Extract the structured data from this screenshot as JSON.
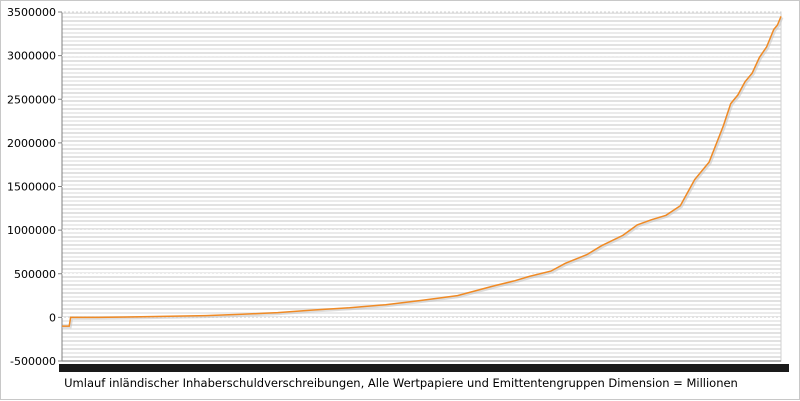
{
  "chart_data": {
    "type": "line",
    "xlabel": "Umlauf inländischer Inhaberschuldverschreibungen, Alle Wertpapiere und Emittentengruppen Dimension = Millionen",
    "ylim": [
      -500000,
      3500000
    ],
    "yticks": [
      -500000,
      0,
      500000,
      1000000,
      1500000,
      2000000,
      2500000,
      3000000,
      3500000
    ],
    "grid": true,
    "legend": "none",
    "x_tick_labels_legible": false,
    "series": [
      {
        "color": "#f08a24",
        "x": [
          0,
          0.8,
          1.0,
          1.2,
          5,
          10,
          15,
          20,
          25,
          30,
          35,
          40,
          45,
          50,
          55,
          60,
          63,
          65,
          68,
          70,
          73,
          75,
          78,
          80,
          82,
          84,
          86,
          88,
          90,
          92,
          93,
          94,
          95,
          96,
          97,
          98,
          99,
          99.5,
          100
        ],
        "values": [
          -100000,
          -100000,
          -100000,
          0,
          0,
          5000,
          12000,
          20000,
          35000,
          55000,
          85000,
          110000,
          145000,
          195000,
          250000,
          360000,
          420000,
          470000,
          530000,
          620000,
          720000,
          820000,
          940000,
          1060000,
          1120000,
          1170000,
          1280000,
          1580000,
          1780000,
          2200000,
          2450000,
          2550000,
          2700000,
          2800000,
          2980000,
          3100000,
          3300000,
          3350000,
          3450000
        ]
      }
    ]
  }
}
